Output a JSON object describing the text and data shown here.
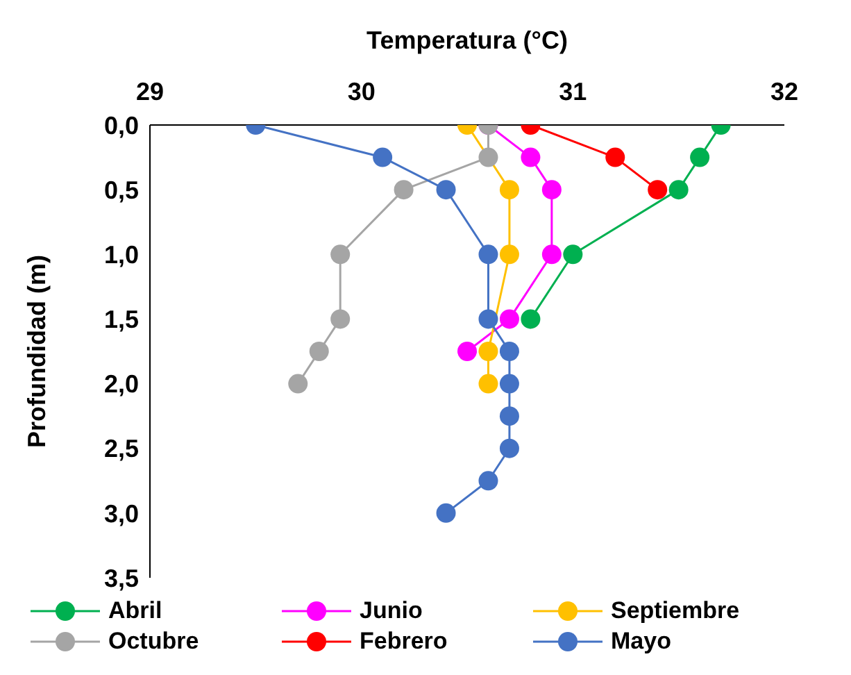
{
  "chart_data": {
    "type": "line",
    "xlabel": "Temperatura (°C)",
    "ylabel": "Profundidad (m)",
    "xlim": [
      29,
      32
    ],
    "xticks": [
      29,
      30,
      31,
      32
    ],
    "ylim": [
      3.5,
      0
    ],
    "yticks": [
      {
        "value": 0,
        "label": "0,0"
      },
      {
        "value": 0.5,
        "label": "0,5"
      },
      {
        "value": 1,
        "label": "1,0"
      },
      {
        "value": 1.5,
        "label": "1,5"
      },
      {
        "value": 2,
        "label": "2,0"
      },
      {
        "value": 2.5,
        "label": "2,5"
      },
      {
        "value": 3,
        "label": "3,0"
      },
      {
        "value": 3.5,
        "label": "3,5"
      }
    ],
    "grid": false,
    "legend": "bottom",
    "marker": "circle",
    "line_style": "solid",
    "series": [
      {
        "name": "Abril",
        "color": "#00b050",
        "x": [
          31.7,
          31.6,
          31.5,
          31.0,
          30.8
        ],
        "values": [
          0,
          0.25,
          0.5,
          1.0,
          1.5
        ]
      },
      {
        "name": "Junio",
        "color": "#ff00ff",
        "x": [
          30.6,
          30.8,
          30.9,
          30.9,
          30.7,
          30.5
        ],
        "values": [
          0,
          0.25,
          0.5,
          1.0,
          1.5,
          1.75
        ]
      },
      {
        "name": "Septiembre",
        "color": "#ffc000",
        "x": [
          30.5,
          30.7,
          30.7,
          30.6,
          30.6
        ],
        "values": [
          0,
          0.5,
          1.0,
          1.75,
          2.0
        ]
      },
      {
        "name": "Octubre",
        "color": "#a5a5a5",
        "x": [
          30.6,
          30.6,
          30.2,
          29.9,
          29.9,
          29.8,
          29.7
        ],
        "values": [
          0,
          0.25,
          0.5,
          1.0,
          1.5,
          1.75,
          2.0
        ]
      },
      {
        "name": "Febrero",
        "color": "#ff0000",
        "x": [
          30.8,
          31.2,
          31.4
        ],
        "values": [
          0,
          0.25,
          0.5
        ]
      },
      {
        "name": "Mayo",
        "color": "#4472c4",
        "x": [
          29.5,
          30.1,
          30.4,
          30.6,
          30.6,
          30.7,
          30.7,
          30.7,
          30.7,
          30.6,
          30.4
        ],
        "values": [
          0,
          0.25,
          0.5,
          1.0,
          1.5,
          1.75,
          2.0,
          2.25,
          2.5,
          2.75,
          3.0
        ]
      }
    ]
  }
}
